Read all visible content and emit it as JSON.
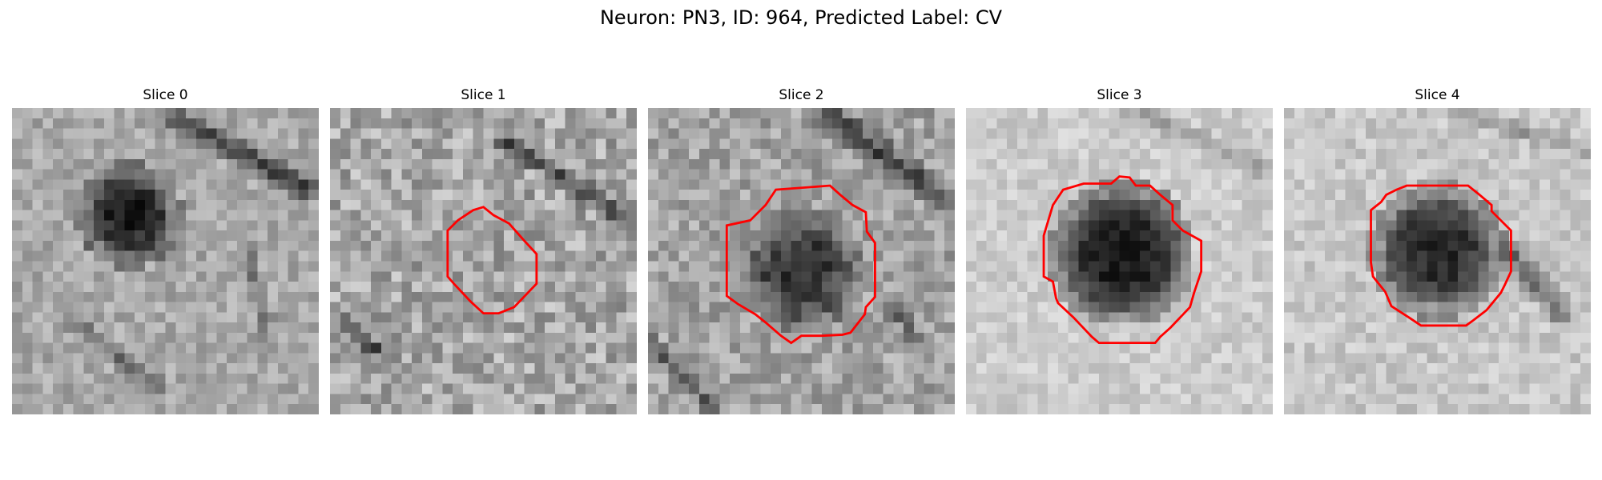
{
  "figure": {
    "title": "Neuron: PN3, ID: 964, Predicted Label: CV",
    "outline_color": "#ff0000"
  },
  "panels": [
    {
      "title": "Slice 0",
      "has_outline": false
    },
    {
      "title": "Slice 1",
      "has_outline": true
    },
    {
      "title": "Slice 2",
      "has_outline": true
    },
    {
      "title": "Slice 3",
      "has_outline": true
    },
    {
      "title": "Slice 4",
      "has_outline": true
    }
  ]
}
